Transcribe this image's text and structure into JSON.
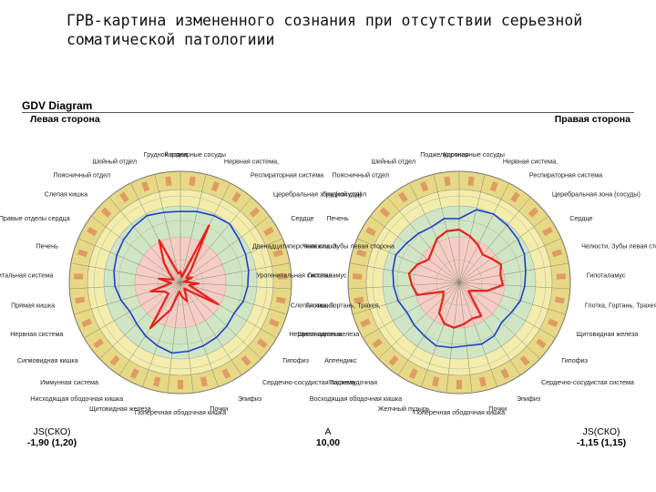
{
  "slide": {
    "title": "ГРВ-картина измененного сознания при отсутствии серьезной соматической патологиии"
  },
  "gdv": {
    "header": "GDV Diagram",
    "left_side": "Левая сторона",
    "right_side": "Правая сторона"
  },
  "left_labels": [
    "Коронарные сосуды",
    "Нервная система,",
    "Респираторная система",
    "Церебральная зона (сосуды)",
    "Сердце",
    "Челюсти, Зубы левая сторона",
    "Гипоталамус",
    "Глотка, Гортань, Трахея,",
    "Щитовидная железа",
    "Гипофиз",
    "Сердечно-сосудистая система",
    "Эпифиз",
    "Почки",
    "Поперечная ободочная кишка",
    "Щитовидная железа",
    "Нисходящая ободочная кишка",
    "Иммунная система",
    "Сигмовидная кишка",
    "Нервная система",
    "Прямая кишка",
    "Урогенитальная система",
    "Печень",
    "Правые отделы сердца",
    "Слепая кишка",
    "Поясничный отдел",
    "Шейный отдел",
    "Грудной отдел"
  ],
  "right_labels": [
    "Коронарные сосуды",
    "Нервная система,",
    "Респираторная система",
    "Церебральная зона (сосуды)",
    "Сердце",
    "Челюсти, Зубы левая сторона",
    "Гипоталамус",
    "Глотка, Гортань, Трахея,",
    "Щитовидная железа",
    "Гипофиз",
    "Сердечно-сосудистая система",
    "Эпифиз",
    "Почки",
    "Поперечная ободочная кишка",
    "Желчный пузырь",
    "Восходящая ободочная кишка",
    "Поджелудочная",
    "Аппендикс",
    "Нервная система",
    "Слепая кишка",
    "Урогенитальная система",
    "Двенадцатиперстная кишка",
    "Печень",
    "Грудной отдел",
    "Поясничный отдел",
    "Шейный отдел",
    "Поджелудочная"
  ],
  "footer": {
    "left_label": "JS(СКО)",
    "left_value": "-1,90 (1,20)",
    "center_label": "A",
    "center_value": "10,00",
    "right_label": "JS(СКО)",
    "right_value": "-1,15 (1,15)"
  },
  "colors": {
    "outer_ring": "#e6d884",
    "ring_yellow": "#f3ecaa",
    "ring_green": "#cfe5c4",
    "ring_pink": "#f5cdc4",
    "blue_line": "#1f3fc8",
    "red_line": "#e8201b"
  }
}
